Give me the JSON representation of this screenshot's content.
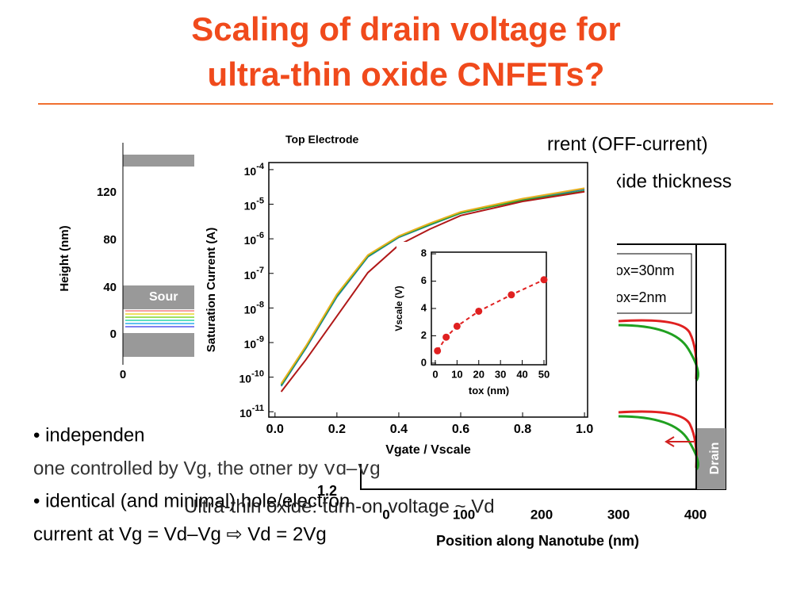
{
  "slide": {
    "title_lines": [
      "Scaling of drain voltage for",
      "ultra-thin oxide CNFETs?"
    ],
    "left_panel": {
      "title": "Top Electrode",
      "ylabel": "Height (nm)",
      "yticks": [
        "120",
        "80",
        "40",
        "0"
      ],
      "xtick": "0",
      "region": "Sour"
    },
    "right_panel": {
      "xlabel": "Position along Nanotube (nm)",
      "xticks": [
        "0",
        "100",
        "200",
        "300",
        "400"
      ],
      "legend": [
        "ox=30nm",
        "ox=2nm"
      ],
      "drain": "Drain",
      "extra": "1.2"
    },
    "texts": [
      "rrent (OFF-current)",
      "xide thickness",
      "• independen",
      "one controlled by Vg, the other by Vd–Vg",
      "• identical (and minimal) hole/electron",
      "current at Vg = Vd–Vg ⇨ Vd = 2Vg",
      "Ultra-thin oxide: turn-on voltage ~ Vd"
    ]
  },
  "chart_data": [
    {
      "type": "line",
      "xlabel": "Vgate / Vscale",
      "ylabel": "Saturation Current (A)",
      "log_y": true,
      "xlim": [
        -0.02,
        1.01
      ],
      "ylim": [
        7e-12,
        0.00016
      ],
      "xticks": [
        {
          "value": 0,
          "label": "0.0"
        },
        0.2,
        0.4,
        0.6,
        0.8,
        {
          "value": 1,
          "label": "1.0"
        }
      ],
      "yticks": [
        {
          "value": 0.0001,
          "label": "10-4"
        },
        {
          "value": 1e-05,
          "label": "10-5"
        },
        {
          "value": 1e-06,
          "label": "10-6"
        },
        {
          "value": 1e-07,
          "label": "10-7"
        },
        {
          "value": 1e-08,
          "label": "10-8"
        },
        {
          "value": 1e-09,
          "label": "10-9"
        },
        {
          "value": 1e-10,
          "label": "10-10"
        },
        {
          "value": 1e-11,
          "label": "10-11"
        }
      ],
      "x": [
        0.02,
        0.1,
        0.2,
        0.3,
        0.4,
        0.5,
        0.6,
        0.8,
        1.0
      ],
      "series": [
        {
          "color": "#1f7fb0",
          "values": [
            5.5e-11,
            6.9e-10,
            2.1e-08,
            3e-07,
            1.1e-06,
            2.5e-06,
            5.5e-06,
            1.35e-05,
            2.7e-05
          ]
        },
        {
          "color": "#2ca02c",
          "values": [
            6e-11,
            7.5e-10,
            2.3e-08,
            3.2e-07,
            1.15e-06,
            2.6e-06,
            5.6e-06,
            1.3e-05,
            2.4e-05
          ]
        },
        {
          "color": "#e8b020",
          "values": [
            6.5e-11,
            8e-10,
            2.5e-08,
            3.4e-07,
            1.2e-06,
            2.8e-06,
            6e-06,
            1.45e-05,
            2.9e-05
          ]
        },
        {
          "color": "#b01818",
          "values": [
            3.8e-11,
            3.2e-10,
            5.8e-09,
            1.05e-07,
            6.6e-07,
            1.9e-06,
            4.7e-06,
            1.2e-05,
            2.3e-05
          ]
        }
      ]
    },
    {
      "type": "line",
      "xlabel": "tox (nm)",
      "ylabel": "Vscale (V)",
      "dashed": true,
      "markers": true,
      "xlim": [
        -1.8,
        51.1
      ],
      "ylim": [
        -0.12,
        8.12
      ],
      "xticks": [
        0,
        10,
        20,
        30,
        40,
        50
      ],
      "yticks": [
        0,
        2,
        4,
        6,
        8
      ],
      "x": [
        1,
        5,
        10,
        20,
        35,
        50
      ],
      "series": [
        {
          "color": "#e02020",
          "values": [
            0.9,
            1.9,
            2.7,
            3.8,
            5,
            6.1
          ]
        }
      ]
    }
  ]
}
